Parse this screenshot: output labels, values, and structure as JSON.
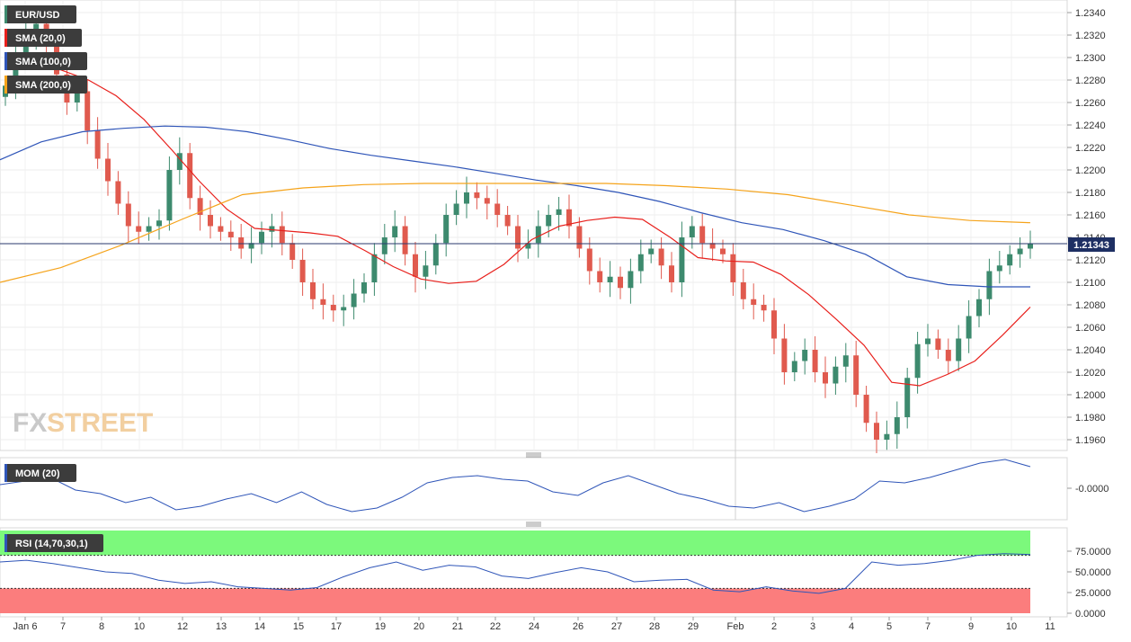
{
  "chart_data": [
    {
      "type": "candlestick",
      "symbol": "EUR/USD",
      "current_price": "1.21343",
      "ylim": [
        1.195,
        1.235
      ],
      "y_ticks": [
        "1.2340",
        "1.2320",
        "1.2300",
        "1.2280",
        "1.2260",
        "1.2240",
        "1.2220",
        "1.2200",
        "1.2180",
        "1.2160",
        "1.2140",
        "1.2120",
        "1.2100",
        "1.2080",
        "1.2060",
        "1.2040",
        "1.2020",
        "1.2000",
        "1.1980",
        "1.1960"
      ],
      "x_ticks": [
        "Jan  6",
        "7",
        "8",
        "10",
        "12",
        "13",
        "14",
        "15",
        "17",
        "19",
        "20",
        "21",
        "22",
        "24",
        "26",
        "27",
        "28",
        "29",
        "Feb",
        "2",
        "3",
        "4",
        "5",
        "7",
        "9",
        "10",
        "11"
      ],
      "series": [
        {
          "name": "SMA (20,0)",
          "color": "#e8201c",
          "values": [
            1.2295,
            1.229,
            1.2289,
            1.228,
            1.2266,
            1.2245,
            1.2218,
            1.219,
            1.2165,
            1.2148,
            1.2146,
            1.2144,
            1.2141,
            1.2128,
            1.2114,
            1.2103,
            1.2099,
            1.2101,
            1.2116,
            1.2138,
            1.215,
            1.2155,
            1.2158,
            1.2156,
            1.214,
            1.2122,
            1.2119,
            1.2118,
            1.2107,
            1.2089,
            1.2067,
            1.2044,
            1.2011,
            1.2008,
            1.2018,
            1.203,
            1.2053,
            1.2078
          ]
        },
        {
          "name": "SMA (100,0)",
          "color": "#2f55b8",
          "values": [
            1.2209,
            1.2225,
            1.2234,
            1.2237,
            1.2239,
            1.2238,
            1.2234,
            1.2227,
            1.2219,
            1.2213,
            1.2208,
            1.2203,
            1.2197,
            1.2191,
            1.2186,
            1.218,
            1.2172,
            1.2162,
            1.2153,
            1.2147,
            1.2137,
            1.2125,
            1.2105,
            1.2098,
            1.2096,
            1.2096
          ]
        },
        {
          "name": "SMA (200,0)",
          "color": "#f5a31a",
          "values": [
            1.21,
            1.2113,
            1.2133,
            1.2156,
            1.2178,
            1.2184,
            1.2187,
            1.2188,
            1.2188,
            1.2188,
            1.2188,
            1.2186,
            1.2183,
            1.2178,
            1.2169,
            1.216,
            1.2155,
            1.2153
          ]
        }
      ]
    },
    {
      "type": "line",
      "name": "MOM (20)",
      "y_ticks": [
        "-0.0000"
      ],
      "values": [
        0.2,
        0.4,
        0.6,
        -0.1,
        -0.3,
        -0.8,
        -0.5,
        -1.2,
        -1.0,
        -0.6,
        -0.3,
        -0.8,
        -0.2,
        -0.9,
        -1.3,
        -1.1,
        -0.5,
        0.3,
        0.6,
        0.7,
        0.5,
        0.4,
        -0.2,
        -0.4,
        0.3,
        0.7,
        0.2,
        -0.3,
        -0.6,
        -1.0,
        -1.1,
        -0.8,
        -1.3,
        -1.0,
        -0.6,
        0.4,
        0.3,
        0.6,
        1.0,
        1.4,
        1.6,
        1.2
      ]
    },
    {
      "type": "line",
      "name": "RSI (14,70,30,1)",
      "y_ticks": [
        "75.0000",
        "50.0000",
        "25.0000",
        "0.0000"
      ],
      "overbought": 70,
      "oversold": 30,
      "values": [
        62,
        64,
        60,
        55,
        50,
        48,
        40,
        36,
        38,
        32,
        30,
        28,
        31,
        44,
        55,
        62,
        52,
        58,
        56,
        45,
        42,
        49,
        55,
        50,
        38,
        40,
        41,
        28,
        26,
        32,
        27,
        24,
        30,
        62,
        58,
        60,
        64,
        70,
        72,
        71
      ]
    }
  ],
  "brand": {
    "logo_text_fx": "FX",
    "logo_text_street": "STREET"
  },
  "colors": {
    "bull": "#3d8a6e",
    "bear": "#e05a4e",
    "rsi_green": "#7cf97c",
    "rsi_red": "#fb7d7d"
  }
}
